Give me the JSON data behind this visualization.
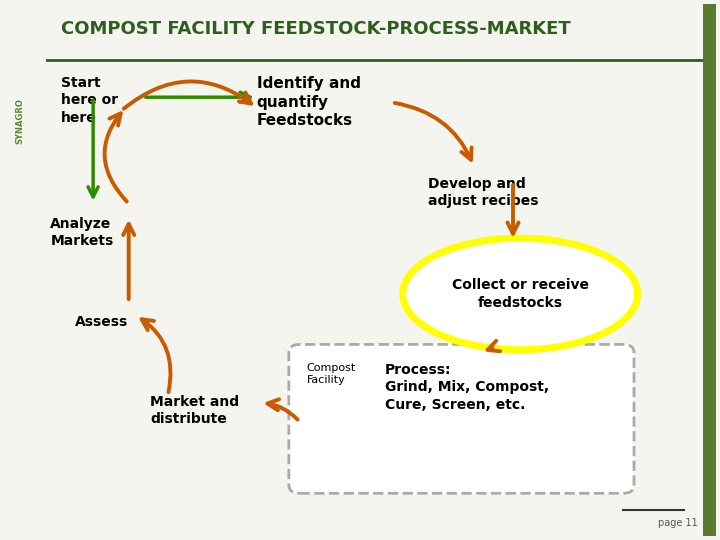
{
  "title": "COMPOST FACILITY FEEDSTOCK-PROCESS-MARKET",
  "title_color": "#2E5E1E",
  "bg_color": "#F5F5F0",
  "orange": "#C85A00",
  "green": "#2E8B00",
  "yellow": "#FFFF00",
  "gray_dashed": "#AAAAAA",
  "text_color": "#000000",
  "page_num": "page 11",
  "logo_text": "SYNAGRO",
  "synagro_color": "#5A8A2E",
  "green_bar_color": "#5A7A2E"
}
